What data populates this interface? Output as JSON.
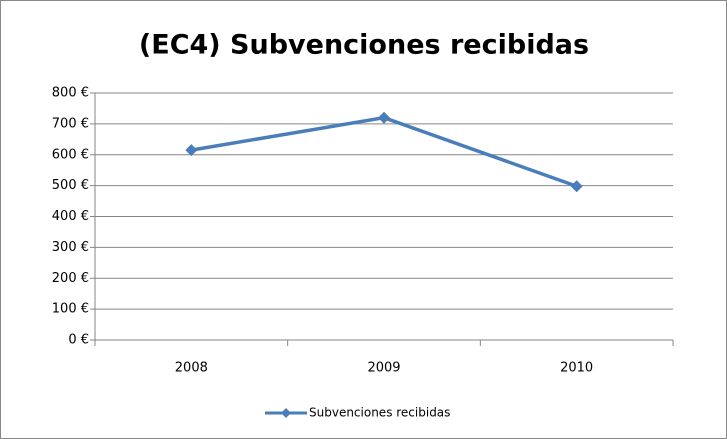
{
  "chart_data": {
    "type": "line",
    "title": "(EC4) Subvenciones recibidas",
    "categories": [
      "2008",
      "2009",
      "2010"
    ],
    "series": [
      {
        "name": "Subvenciones recibidas",
        "color": "#4a7ebb",
        "values": [
          615,
          720,
          498
        ]
      }
    ],
    "ylim": [
      0,
      800
    ],
    "yticks": [
      {
        "value": 0,
        "label": "0 €"
      },
      {
        "value": 100,
        "label": "100 €"
      },
      {
        "value": 200,
        "label": "200 €"
      },
      {
        "value": 300,
        "label": "300 €"
      },
      {
        "value": 400,
        "label": "400 €"
      },
      {
        "value": 500,
        "label": "500 €"
      },
      {
        "value": 600,
        "label": "600 €"
      },
      {
        "value": 700,
        "label": "700 €"
      },
      {
        "value": 800,
        "label": "800 €"
      }
    ],
    "grid": true,
    "legend": "bottom"
  }
}
